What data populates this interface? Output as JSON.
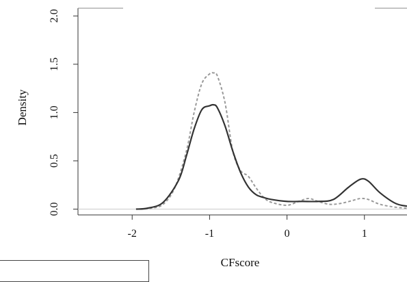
{
  "chart_data": {
    "type": "line",
    "title": "",
    "xlabel": "CFscore",
    "ylabel": "Density",
    "xlim": [
      -2.7,
      1.55
    ],
    "ylim": [
      -0.06,
      2.08
    ],
    "x_ticks": [
      -2,
      -1,
      0,
      1
    ],
    "x_tick_labels": [
      "-2",
      "-1",
      "0",
      "1"
    ],
    "y_ticks": [
      0.0,
      0.5,
      1.0,
      1.5,
      2.0
    ],
    "y_tick_labels": [
      "0.0",
      "0.5",
      "1.0",
      "1.5",
      "2.0"
    ],
    "grid": false,
    "baseline": 0,
    "series": [
      {
        "style": "solid",
        "color": "#333333",
        "x": [
          -1.95,
          -1.8,
          -1.6,
          -1.4,
          -1.3,
          -1.2,
          -1.1,
          -1.0,
          -0.95,
          -0.9,
          -0.8,
          -0.7,
          -0.6,
          -0.5,
          -0.4,
          -0.3,
          -0.2,
          0.0,
          0.2,
          0.4,
          0.6,
          0.8,
          0.95,
          1.05,
          1.2,
          1.4,
          1.55
        ],
        "values": [
          0.0,
          0.01,
          0.07,
          0.3,
          0.55,
          0.83,
          1.03,
          1.07,
          1.08,
          1.05,
          0.86,
          0.6,
          0.38,
          0.23,
          0.15,
          0.12,
          0.1,
          0.08,
          0.08,
          0.08,
          0.1,
          0.23,
          0.31,
          0.29,
          0.17,
          0.06,
          0.03
        ]
      },
      {
        "style": "dashed",
        "color": "#999999",
        "x": [
          -1.9,
          -1.75,
          -1.6,
          -1.45,
          -1.3,
          -1.2,
          -1.1,
          -1.0,
          -0.95,
          -0.9,
          -0.8,
          -0.7,
          -0.6,
          -0.5,
          -0.4,
          -0.3,
          -0.2,
          0.0,
          0.15,
          0.28,
          0.4,
          0.55,
          0.7,
          0.85,
          0.95,
          1.05,
          1.2,
          1.4,
          1.55
        ],
        "values": [
          0.0,
          0.01,
          0.05,
          0.22,
          0.6,
          1.0,
          1.3,
          1.4,
          1.41,
          1.38,
          1.1,
          0.6,
          0.4,
          0.34,
          0.22,
          0.12,
          0.07,
          0.04,
          0.08,
          0.11,
          0.08,
          0.05,
          0.06,
          0.09,
          0.11,
          0.1,
          0.05,
          0.02,
          0.01
        ]
      }
    ]
  }
}
